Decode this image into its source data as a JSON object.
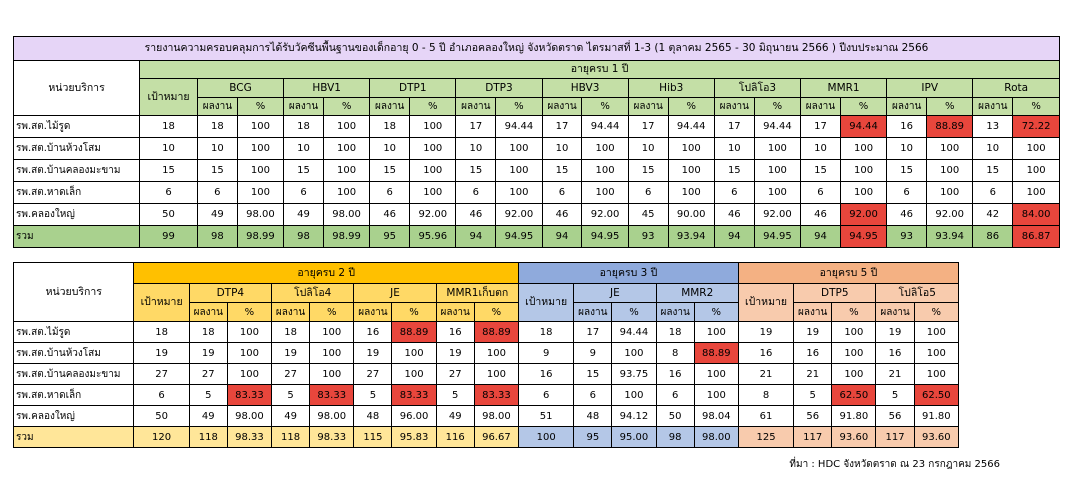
{
  "report_title": "รายงานความครอบคลุมการได้รับวัคซีนพื้นฐานของเด็กอายุ 0 - 5 ปี อำเภอคลองใหญ่ จังหวัดตราด ไตรมาสที่ 1-3 (1 ตุลาคม 2565 - 30 มิถุนายน 2566 ) ปีงบประมาณ 2566",
  "labels": {
    "unit": "หน่วยบริการ",
    "target": "เป้าหมาย",
    "result": "ผลงาน",
    "pct": "%"
  },
  "highlight_color": "#e8463c",
  "table1": {
    "age_group": "อายุครบ 1 ปี",
    "vaccines": [
      "BCG",
      "HBV1",
      "DTP1",
      "DTP3",
      "HBV3",
      "Hib3",
      "โปลิโอ3",
      "MMR1",
      "IPV",
      "Rota"
    ],
    "rows": [
      {
        "unit": "รพ.สต.ไม้รูด",
        "target": "18",
        "cells": [
          [
            "18",
            "100"
          ],
          [
            "18",
            "100"
          ],
          [
            "18",
            "100"
          ],
          [
            "17",
            "94.44"
          ],
          [
            "17",
            "94.44"
          ],
          [
            "17",
            "94.44"
          ],
          [
            "17",
            "94.44"
          ],
          [
            "17",
            "94.44"
          ],
          [
            "16",
            "88.89"
          ],
          [
            "13",
            "72.22"
          ]
        ],
        "red": [
          7,
          8,
          9
        ]
      },
      {
        "unit": "รพ.สต.บ้านห้วงโสม",
        "target": "10",
        "cells": [
          [
            "10",
            "100"
          ],
          [
            "10",
            "100"
          ],
          [
            "10",
            "100"
          ],
          [
            "10",
            "100"
          ],
          [
            "10",
            "100"
          ],
          [
            "10",
            "100"
          ],
          [
            "10",
            "100"
          ],
          [
            "10",
            "100"
          ],
          [
            "10",
            "100"
          ],
          [
            "10",
            "100"
          ]
        ],
        "red": []
      },
      {
        "unit": "รพ.สต.บ้านคลองมะขาม",
        "target": "15",
        "cells": [
          [
            "15",
            "100"
          ],
          [
            "15",
            "100"
          ],
          [
            "15",
            "100"
          ],
          [
            "15",
            "100"
          ],
          [
            "15",
            "100"
          ],
          [
            "15",
            "100"
          ],
          [
            "15",
            "100"
          ],
          [
            "15",
            "100"
          ],
          [
            "15",
            "100"
          ],
          [
            "15",
            "100"
          ]
        ],
        "red": []
      },
      {
        "unit": "รพ.สต.หาดเล็ก",
        "target": "6",
        "cells": [
          [
            "6",
            "100"
          ],
          [
            "6",
            "100"
          ],
          [
            "6",
            "100"
          ],
          [
            "6",
            "100"
          ],
          [
            "6",
            "100"
          ],
          [
            "6",
            "100"
          ],
          [
            "6",
            "100"
          ],
          [
            "6",
            "100"
          ],
          [
            "6",
            "100"
          ],
          [
            "6",
            "100"
          ]
        ],
        "red": []
      },
      {
        "unit": "รพ.คลองใหญ่",
        "target": "50",
        "cells": [
          [
            "49",
            "98.00"
          ],
          [
            "49",
            "98.00"
          ],
          [
            "46",
            "92.00"
          ],
          [
            "46",
            "92.00"
          ],
          [
            "46",
            "92.00"
          ],
          [
            "45",
            "90.00"
          ],
          [
            "46",
            "92.00"
          ],
          [
            "46",
            "92.00"
          ],
          [
            "46",
            "92.00"
          ],
          [
            "42",
            "84.00"
          ]
        ],
        "red": [
          7,
          9
        ]
      }
    ],
    "total": {
      "unit": "รวม",
      "target": "99",
      "cells": [
        [
          "98",
          "98.99"
        ],
        [
          "98",
          "98.99"
        ],
        [
          "95",
          "95.96"
        ],
        [
          "94",
          "94.95"
        ],
        [
          "94",
          "94.95"
        ],
        [
          "93",
          "93.94"
        ],
        [
          "94",
          "94.95"
        ],
        [
          "94",
          "94.95"
        ],
        [
          "93",
          "93.94"
        ],
        [
          "86",
          "86.87"
        ]
      ],
      "red": [
        7,
        9
      ]
    }
  },
  "table2": {
    "groups": [
      {
        "age": "อายุครบ 2 ปี",
        "vaccines": [
          "DTP4",
          "โปลิโอ4",
          "JE",
          "MMR1เก็บตก"
        ]
      },
      {
        "age": "อายุครบ 3 ปี",
        "vaccines": [
          "JE",
          "MMR2"
        ]
      },
      {
        "age": "อายุครบ 5 ปี",
        "vaccines": [
          "DTP5",
          "โปลิโอ5"
        ]
      }
    ],
    "rows": [
      {
        "unit": "รพ.สต.ไม้รูด",
        "targets": [
          "18",
          "18",
          "19"
        ],
        "cells": [
          [
            "18",
            "100"
          ],
          [
            "18",
            "100"
          ],
          [
            "16",
            "88.89"
          ],
          [
            "16",
            "88.89"
          ],
          [
            "17",
            "94.44"
          ],
          [
            "18",
            "100"
          ],
          [
            "19",
            "100"
          ],
          [
            "19",
            "100"
          ]
        ],
        "red": [
          2,
          3
        ]
      },
      {
        "unit": "รพ.สต.บ้านห้วงโสม",
        "targets": [
          "19",
          "9",
          "16"
        ],
        "cells": [
          [
            "19",
            "100"
          ],
          [
            "19",
            "100"
          ],
          [
            "19",
            "100"
          ],
          [
            "19",
            "100"
          ],
          [
            "9",
            "100"
          ],
          [
            "8",
            "88.89"
          ],
          [
            "16",
            "100"
          ],
          [
            "16",
            "100"
          ]
        ],
        "red": [
          5
        ]
      },
      {
        "unit": "รพ.สต.บ้านคลองมะขาม",
        "targets": [
          "27",
          "16",
          "21"
        ],
        "cells": [
          [
            "27",
            "100"
          ],
          [
            "27",
            "100"
          ],
          [
            "27",
            "100"
          ],
          [
            "27",
            "100"
          ],
          [
            "15",
            "93.75"
          ],
          [
            "16",
            "100"
          ],
          [
            "21",
            "100"
          ],
          [
            "21",
            "100"
          ]
        ],
        "red": []
      },
      {
        "unit": "รพ.สต.หาดเล็ก",
        "targets": [
          "6",
          "6",
          "8"
        ],
        "cells": [
          [
            "5",
            "83.33"
          ],
          [
            "5",
            "83.33"
          ],
          [
            "5",
            "83.33"
          ],
          [
            "5",
            "83.33"
          ],
          [
            "6",
            "100"
          ],
          [
            "6",
            "100"
          ],
          [
            "5",
            "62.50"
          ],
          [
            "5",
            "62.50"
          ]
        ],
        "red": [
          0,
          1,
          2,
          3,
          6,
          7
        ]
      },
      {
        "unit": "รพ.คลองใหญ่",
        "targets": [
          "50",
          "51",
          "61"
        ],
        "cells": [
          [
            "49",
            "98.00"
          ],
          [
            "49",
            "98.00"
          ],
          [
            "48",
            "96.00"
          ],
          [
            "49",
            "98.00"
          ],
          [
            "48",
            "94.12"
          ],
          [
            "50",
            "98.04"
          ],
          [
            "56",
            "91.80"
          ],
          [
            "56",
            "91.80"
          ]
        ],
        "red": []
      }
    ],
    "total": {
      "unit": "รวม",
      "targets": [
        "120",
        "100",
        "125"
      ],
      "cells": [
        [
          "118",
          "98.33"
        ],
        [
          "118",
          "98.33"
        ],
        [
          "115",
          "95.83"
        ],
        [
          "116",
          "96.67"
        ],
        [
          "95",
          "95.00"
        ],
        [
          "98",
          "98.00"
        ],
        [
          "117",
          "93.60"
        ],
        [
          "117",
          "93.60"
        ]
      ],
      "red": []
    }
  },
  "source": "ที่มา : HDC จังหวัดตราด ณ 23 กรกฎาคม 2566"
}
